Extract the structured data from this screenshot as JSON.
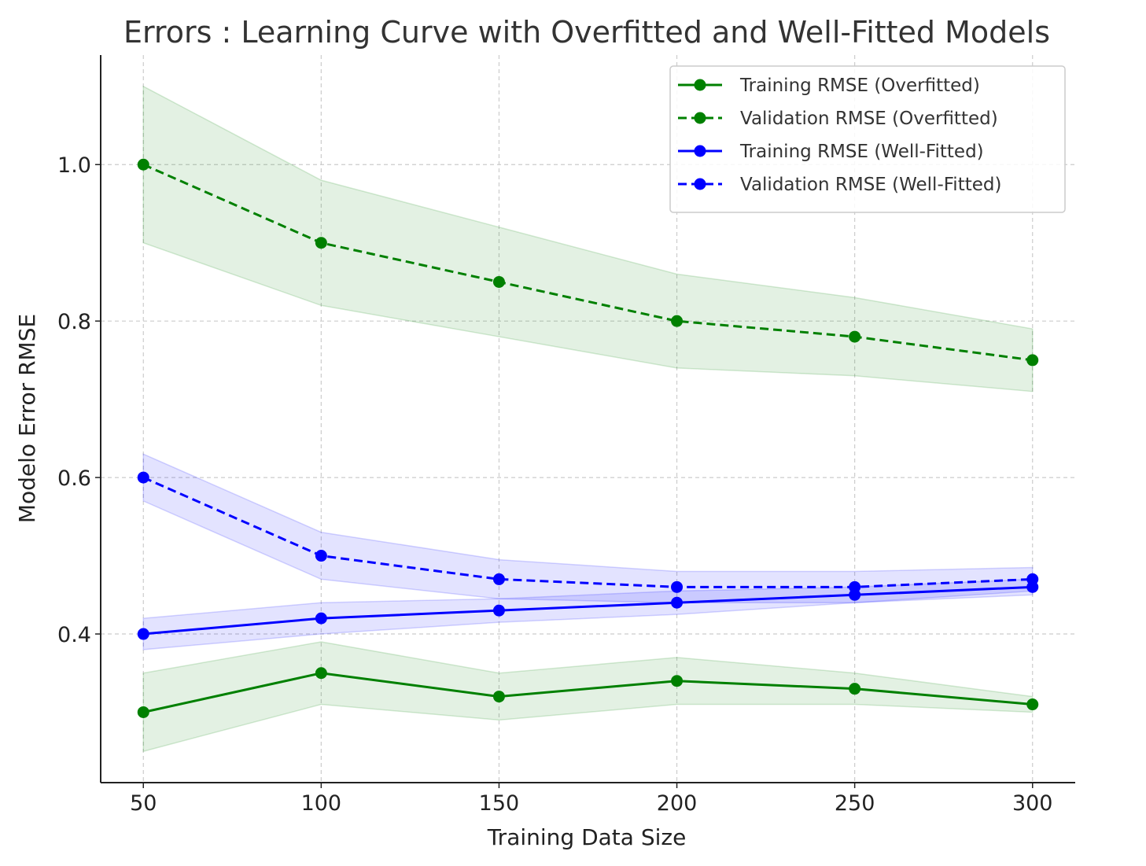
{
  "chart_data": {
    "type": "line",
    "title": "Errors : Learning Curve with Overfitted and Well-Fitted Models",
    "xlabel": "Training Data Size",
    "ylabel": "Modelo Error RMSE",
    "x": [
      50,
      100,
      150,
      200,
      250,
      300
    ],
    "xlim": [
      38,
      312
    ],
    "ylim": [
      0.21,
      1.14
    ],
    "xticks": [
      50,
      100,
      150,
      200,
      250,
      300
    ],
    "yticks": [
      0.4,
      0.6,
      0.8,
      1.0
    ],
    "xtick_labels": [
      "50",
      "100",
      "150",
      "200",
      "250",
      "300"
    ],
    "ytick_labels": [
      "0.4",
      "0.6",
      "0.8",
      "1.0"
    ],
    "grid": true,
    "legend_position": "top-right",
    "series": [
      {
        "name": "Training RMSE (Overfitted)",
        "color": "#008000",
        "dash": "solid",
        "values": [
          0.3,
          0.35,
          0.32,
          0.34,
          0.33,
          0.31
        ],
        "band_upper": [
          0.35,
          0.39,
          0.35,
          0.37,
          0.35,
          0.32
        ],
        "band_lower": [
          0.25,
          0.31,
          0.29,
          0.31,
          0.31,
          0.3
        ]
      },
      {
        "name": "Validation RMSE (Overfitted)",
        "color": "#008000",
        "dash": "dashed",
        "values": [
          1.0,
          0.9,
          0.85,
          0.8,
          0.78,
          0.75
        ],
        "band_upper": [
          1.1,
          0.98,
          0.92,
          0.86,
          0.83,
          0.79
        ],
        "band_lower": [
          0.9,
          0.82,
          0.78,
          0.74,
          0.73,
          0.71
        ]
      },
      {
        "name": "Training RMSE (Well-Fitted)",
        "color": "#0000ff",
        "dash": "solid",
        "values": [
          0.4,
          0.42,
          0.43,
          0.44,
          0.45,
          0.46
        ],
        "band_upper": [
          0.42,
          0.44,
          0.445,
          0.455,
          0.46,
          0.47
        ],
        "band_lower": [
          0.38,
          0.4,
          0.415,
          0.425,
          0.44,
          0.45
        ]
      },
      {
        "name": "Validation RMSE (Well-Fitted)",
        "color": "#0000ff",
        "dash": "dashed",
        "values": [
          0.6,
          0.5,
          0.47,
          0.46,
          0.46,
          0.47
        ],
        "band_upper": [
          0.63,
          0.53,
          0.495,
          0.48,
          0.48,
          0.485
        ],
        "band_lower": [
          0.57,
          0.47,
          0.445,
          0.44,
          0.44,
          0.455
        ]
      }
    ]
  }
}
